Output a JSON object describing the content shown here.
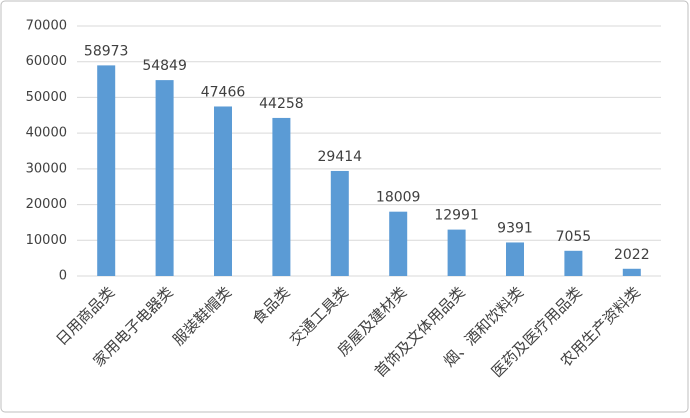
{
  "chart_data": {
    "type": "bar",
    "categories": [
      "日用商品类",
      "家用电子电器类",
      "服装鞋帽类",
      "食品类",
      "交通工具类",
      "房屋及建材类",
      "首饰及文体用品类",
      "烟、酒和饮料类",
      "医药及医疗用品类",
      "农用生产资料类"
    ],
    "values": [
      58973,
      54849,
      47466,
      44258,
      29414,
      18009,
      12991,
      9391,
      7055,
      2022
    ],
    "color": "#5b9bd5",
    "ylim": [
      0,
      70000
    ],
    "yticks": [
      0,
      10000,
      20000,
      30000,
      40000,
      50000,
      60000,
      70000
    ],
    "grid": true
  }
}
